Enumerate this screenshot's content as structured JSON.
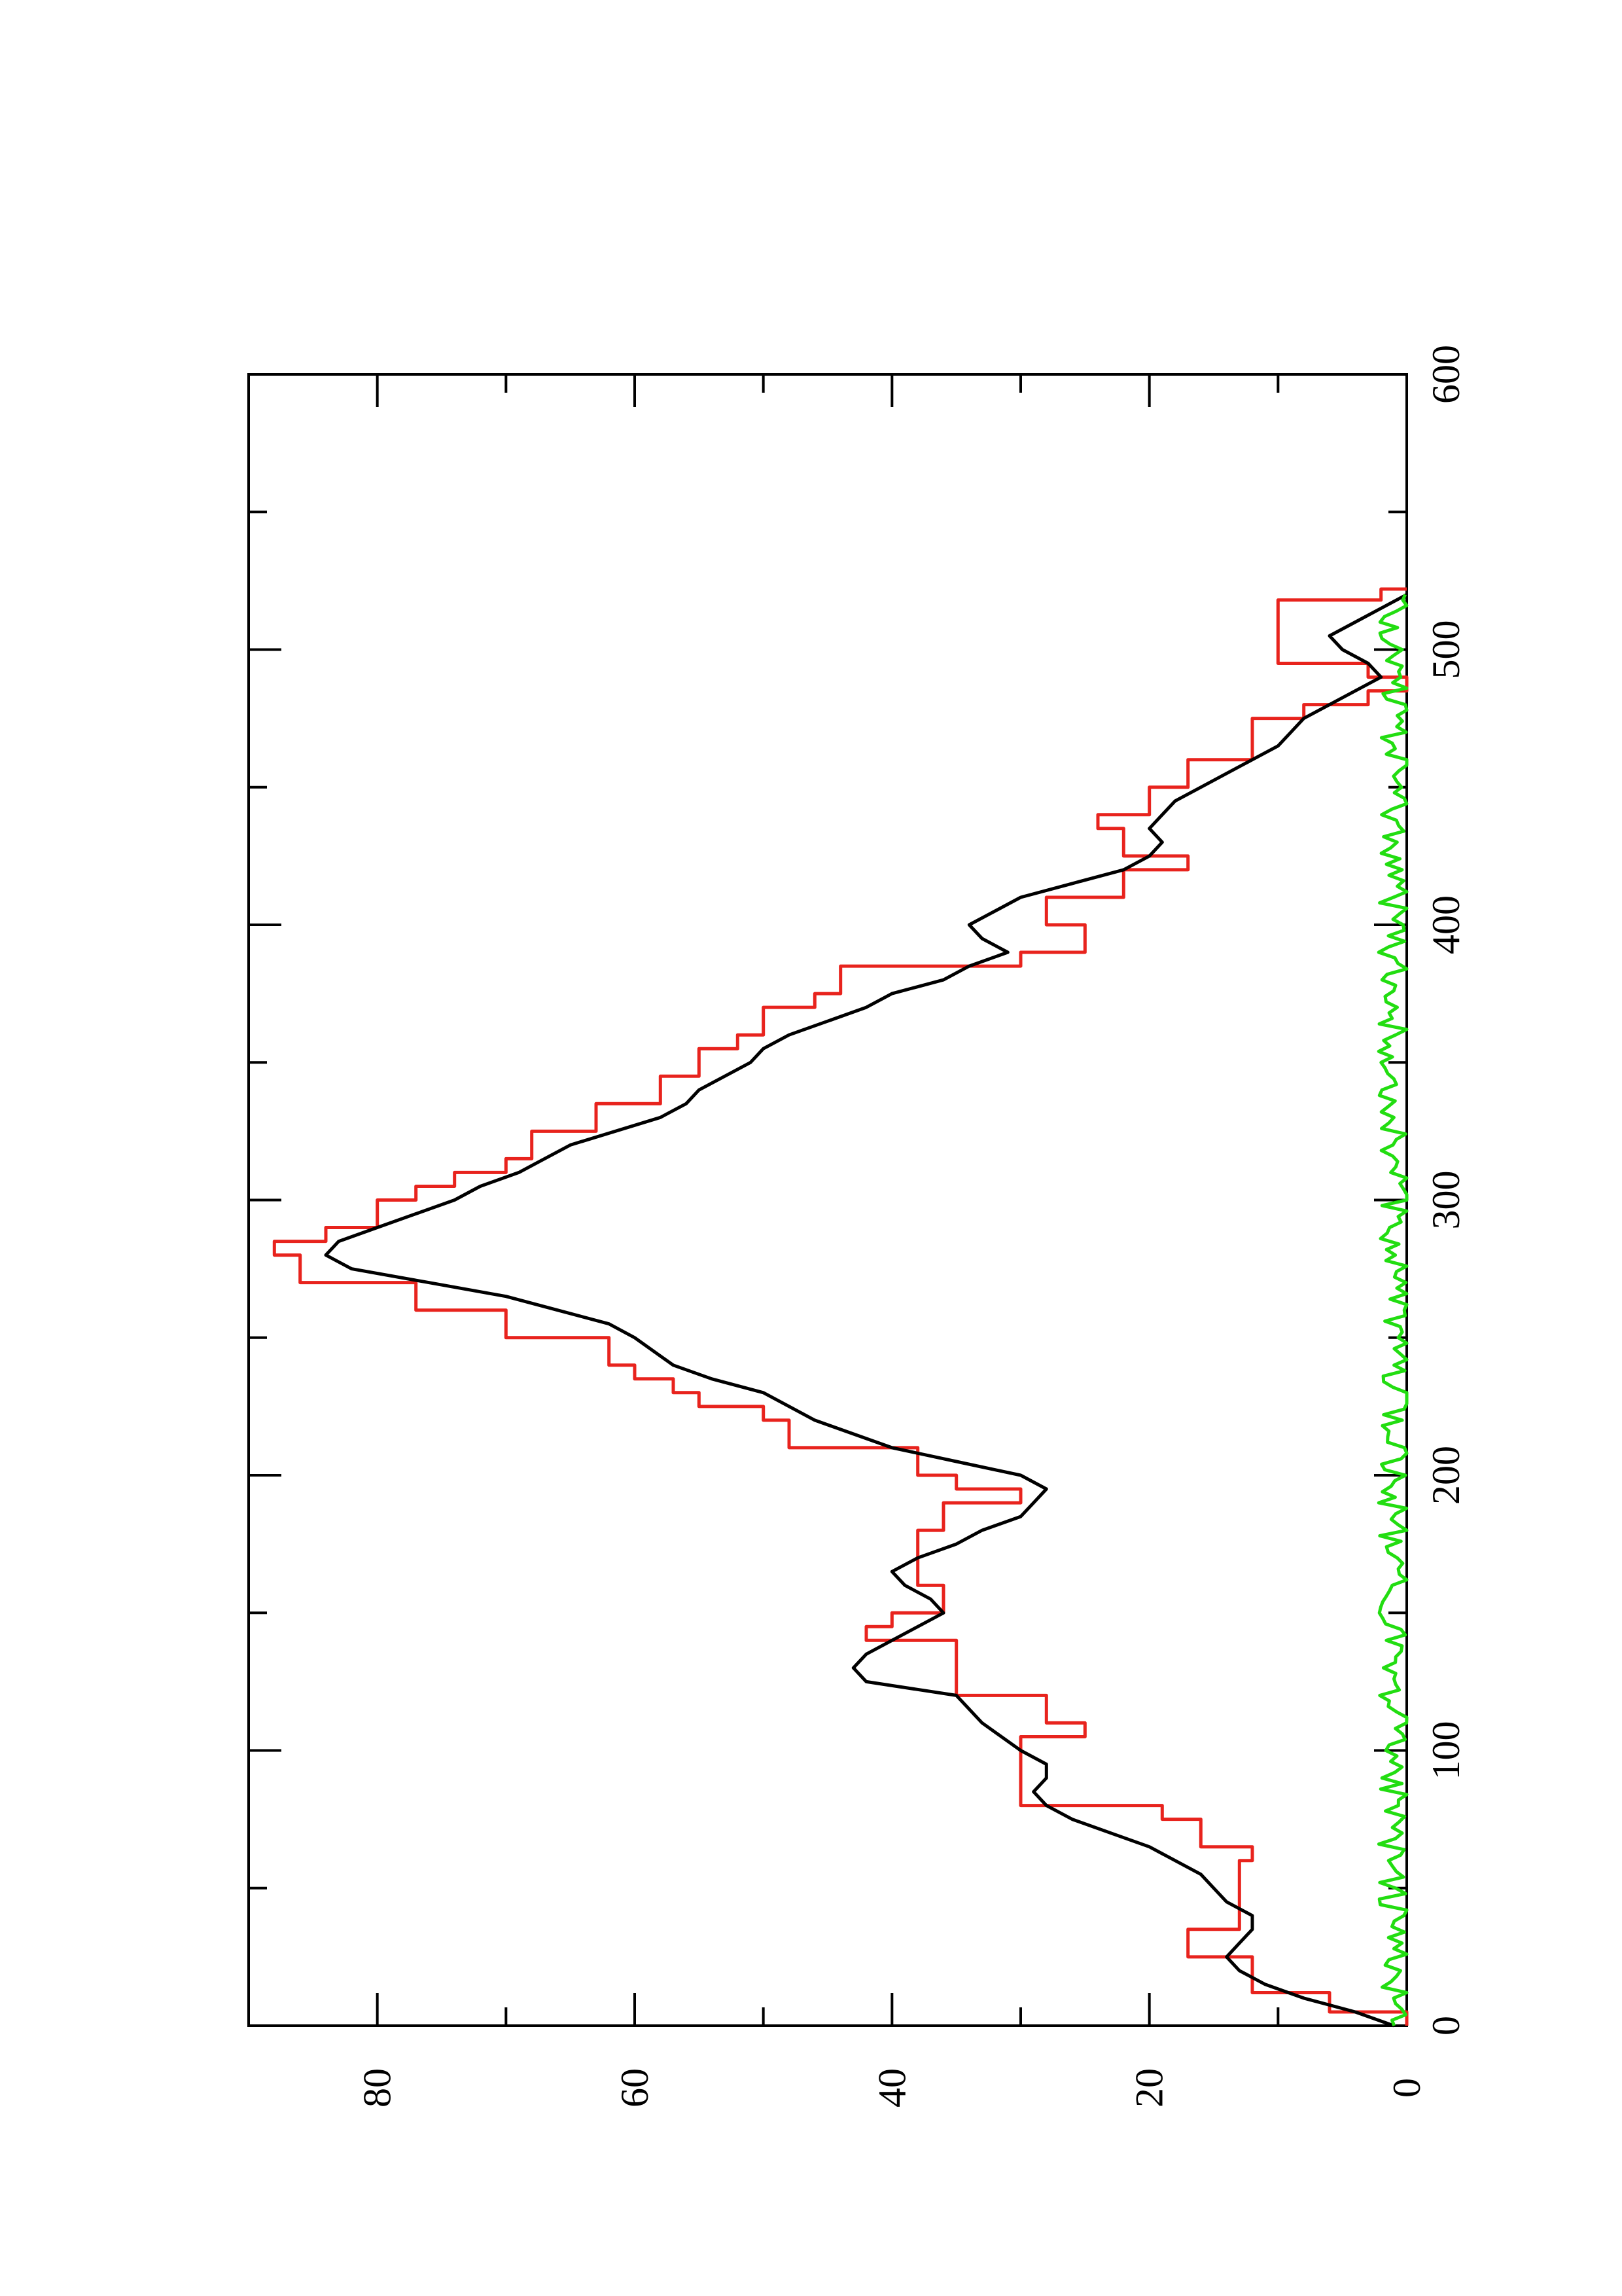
{
  "chart_data": {
    "type": "line",
    "orientation": "rotated-90-ccw",
    "title": "",
    "xlabel": "",
    "ylabel": "",
    "xlim": [
      0,
      600
    ],
    "ylim": [
      0,
      90
    ],
    "x_ticks": [
      0,
      100,
      200,
      300,
      400,
      500,
      600
    ],
    "x_minor_ticks": [
      50,
      150,
      250,
      350,
      450,
      550
    ],
    "y_ticks": [
      0,
      20,
      40,
      60,
      80
    ],
    "y_minor_ticks": [
      10,
      30,
      50,
      70
    ],
    "x_tick_labels": [
      "0",
      "100",
      "200",
      "300",
      "400",
      "500",
      "600"
    ],
    "y_tick_labels": [
      "0",
      "20",
      "40",
      "60",
      "80"
    ],
    "grid": false,
    "series": [
      {
        "color": "#e8231d",
        "style": "step",
        "x": [
          0,
          5,
          12,
          25,
          35,
          60,
          65,
          75,
          80,
          100,
          105,
          110,
          120,
          140,
          145,
          150,
          160,
          180,
          190,
          195,
          200,
          210,
          220,
          225,
          230,
          235,
          240,
          250,
          260,
          270,
          280,
          285,
          290,
          300,
          305,
          310,
          315,
          325,
          335,
          345,
          355,
          360,
          370,
          375,
          385,
          390,
          400,
          410,
          420,
          425,
          435,
          440,
          450,
          460,
          475,
          480,
          485,
          490,
          495,
          510,
          518,
          522
        ],
        "y": [
          0,
          6,
          12,
          17,
          13,
          12,
          16,
          19,
          30,
          30,
          25,
          28,
          35,
          42,
          40,
          36,
          38,
          36,
          30,
          35,
          38,
          48,
          50,
          55,
          57,
          60,
          62,
          70,
          77,
          86,
          88,
          84,
          80,
          77,
          74,
          70,
          68,
          63,
          58,
          55,
          52,
          50,
          46,
          44,
          30,
          25,
          28,
          22,
          17,
          22,
          24,
          20,
          17,
          12,
          8,
          3,
          0,
          3,
          10,
          10,
          2,
          0
        ]
      },
      {
        "color": "#000000",
        "style": "line",
        "x": [
          0,
          5,
          10,
          15,
          20,
          25,
          30,
          35,
          40,
          45,
          50,
          55,
          60,
          65,
          70,
          75,
          80,
          85,
          90,
          95,
          100,
          110,
          120,
          125,
          130,
          135,
          140,
          145,
          150,
          155,
          160,
          165,
          170,
          175,
          180,
          185,
          190,
          195,
          200,
          205,
          210,
          220,
          230,
          235,
          240,
          250,
          255,
          260,
          265,
          270,
          275,
          280,
          285,
          290,
          295,
          300,
          305,
          310,
          320,
          330,
          335,
          340,
          345,
          350,
          355,
          360,
          365,
          370,
          375,
          380,
          385,
          390,
          395,
          400,
          405,
          410,
          415,
          420,
          425,
          430,
          435,
          440,
          445,
          450,
          455,
          460,
          465,
          470,
          475,
          480,
          485,
          490,
          495,
          500,
          505,
          510,
          515,
          520
        ],
        "y": [
          1,
          4,
          8,
          11,
          13,
          14,
          13,
          12,
          12,
          14,
          15,
          16,
          18,
          20,
          23,
          26,
          28,
          29,
          28,
          28,
          30,
          33,
          35,
          42,
          43,
          42,
          40,
          38,
          36,
          37,
          39,
          40,
          38,
          35,
          33,
          30,
          29,
          28,
          30,
          35,
          40,
          46,
          50,
          54,
          57,
          60,
          62,
          66,
          70,
          76,
          82,
          84,
          83,
          80,
          77,
          74,
          72,
          69,
          65,
          58,
          56,
          55,
          53,
          51,
          50,
          48,
          45,
          42,
          40,
          36,
          34,
          31,
          33,
          34,
          32,
          30,
          26,
          22,
          20,
          19,
          20,
          19,
          18,
          16,
          14,
          12,
          10,
          9,
          8,
          6,
          4,
          2,
          3,
          5,
          6,
          4,
          2,
          0
        ]
      },
      {
        "color": "#22dd11",
        "style": "noisy-line",
        "x": [
          0,
          520
        ],
        "y_mean": 1,
        "y_amplitude": 1.2
      }
    ]
  }
}
